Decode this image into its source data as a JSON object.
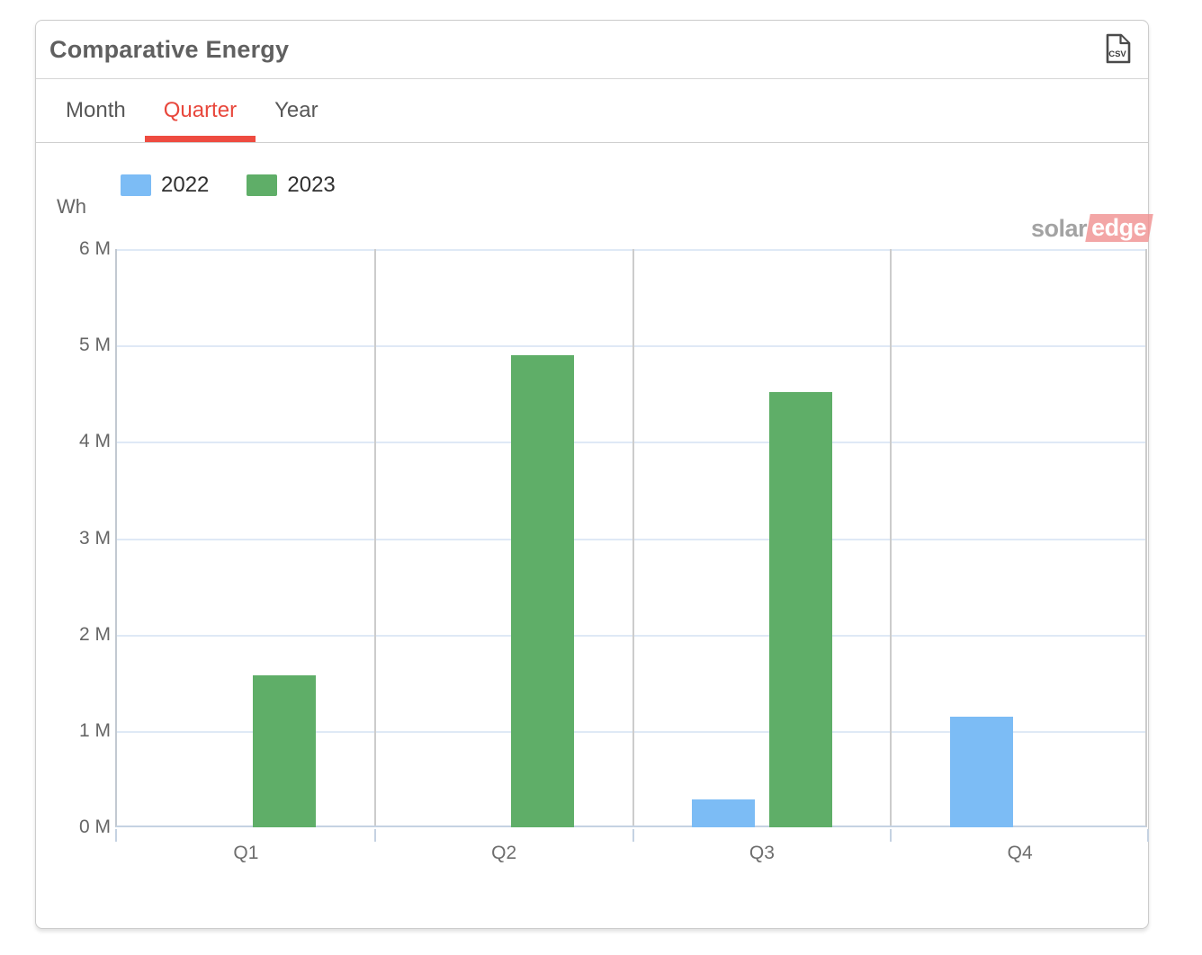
{
  "header": {
    "title": "Comparative Energy",
    "csv_icon_label": "CSV"
  },
  "tabs": [
    {
      "label": "Month",
      "active": false
    },
    {
      "label": "Quarter",
      "active": true
    },
    {
      "label": "Year",
      "active": false
    }
  ],
  "watermark": {
    "part1": "solar",
    "part2": "edge"
  },
  "chart_data": {
    "type": "bar",
    "title": "Comparative Energy",
    "unit_label": "Wh",
    "categories": [
      "Q1",
      "Q2",
      "Q3",
      "Q4"
    ],
    "series": [
      {
        "name": "2022",
        "color": "#7cbcf5",
        "values": [
          null,
          null,
          0.29,
          1.15
        ]
      },
      {
        "name": "2023",
        "color": "#5fae68",
        "values": [
          1.58,
          4.9,
          4.52,
          null
        ]
      }
    ],
    "value_scale": "millions of Wh",
    "ylim": [
      0,
      6
    ],
    "ytick_labels": [
      "0 M",
      "1 M",
      "2 M",
      "3 M",
      "4 M",
      "5 M",
      "6 M"
    ],
    "grid": true,
    "legend_position": "top-left"
  },
  "colors": {
    "accent_red": "#ee4b40",
    "bar_blue": "#7cbcf5",
    "bar_green": "#5fae68",
    "gridline": "#dfe9f6",
    "axis_line": "#c5d2e2"
  }
}
